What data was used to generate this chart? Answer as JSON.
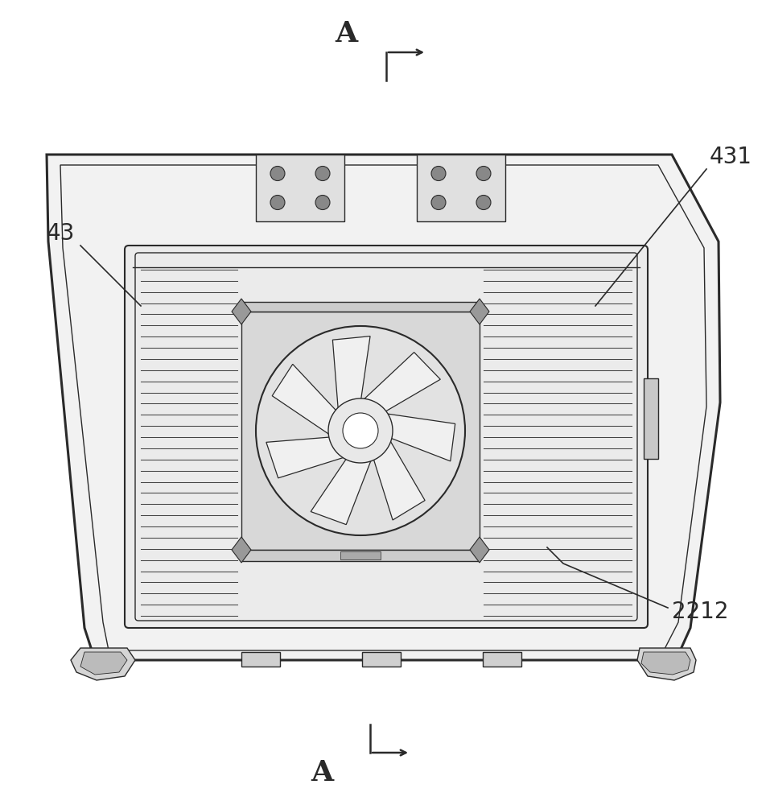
{
  "bg_color": "#ffffff",
  "line_color": "#2a2a2a",
  "label_fontsize": 20,
  "section_fontsize": 26
}
